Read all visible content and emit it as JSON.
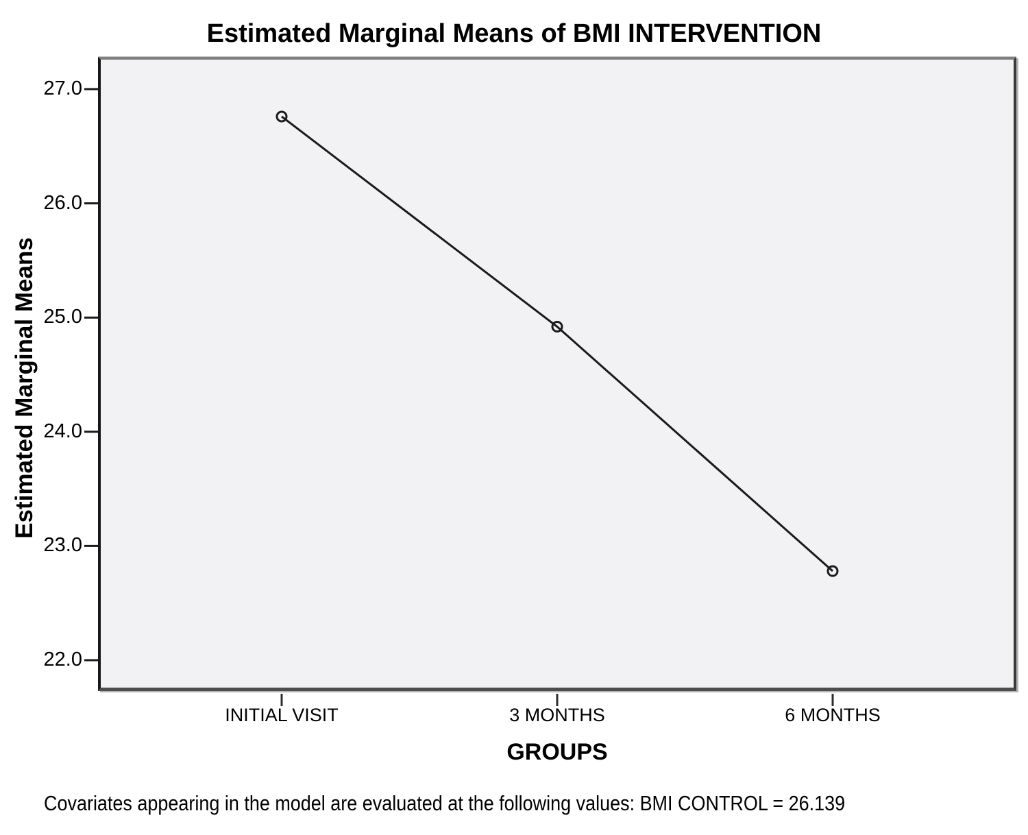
{
  "chart": {
    "title": "Estimated Marginal Means of BMI INTERVENTION",
    "y_axis_title": "Estimated Marginal Means",
    "x_axis_title": "GROUPS",
    "footnote": "Covariates appearing in the model are evaluated at the following values: BMI CONTROL = 26.139"
  },
  "chart_data": {
    "type": "line",
    "title": "Estimated Marginal Means of BMI INTERVENTION",
    "xlabel": "GROUPS",
    "ylabel": "Estimated Marginal Means",
    "categories": [
      "INITIAL VISIT",
      "3 MONTHS",
      "6 MONTHS"
    ],
    "series": [
      {
        "name": "BMI INTERVENTION",
        "values": [
          26.76,
          24.92,
          22.78
        ]
      }
    ],
    "yticks": [
      27.0,
      26.0,
      25.0,
      24.0,
      23.0,
      22.0
    ],
    "ytick_labels": [
      "27.0",
      "26.0",
      "25.0",
      "24.0",
      "23.0",
      "22.0"
    ],
    "ylim": [
      21.73,
      27.28
    ],
    "grid": false,
    "legend_position": "none",
    "marker": "open-circle",
    "line_color": "#1a1a1a",
    "marker_color": "#1a1a1a",
    "plot_background": "#f2f2f4",
    "annotations": [
      "Covariates appearing in the model are evaluated at the following values: BMI CONTROL = 26.139"
    ]
  }
}
